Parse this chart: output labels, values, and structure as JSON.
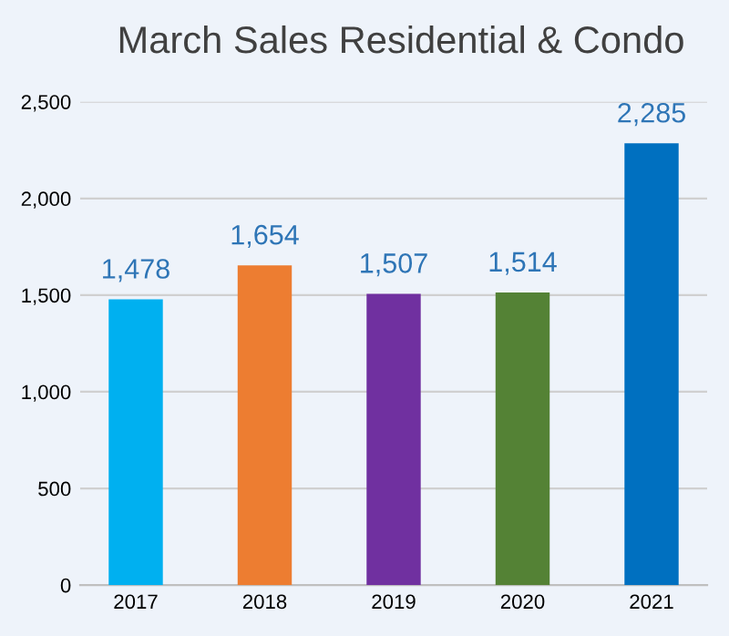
{
  "chart_data": {
    "type": "bar",
    "title": "March Sales Residential & Condo",
    "categories": [
      "2017",
      "2018",
      "2019",
      "2020",
      "2021"
    ],
    "values": [
      1478,
      1654,
      1507,
      1514,
      2285
    ],
    "colors": [
      "#00b0f0",
      "#ed7d31",
      "#7030a0",
      "#548235",
      "#0070c0"
    ],
    "value_labels": [
      "1,478",
      "1,654",
      "1,507",
      "1,514",
      "2,285"
    ],
    "ylim": [
      0,
      2500
    ],
    "yticks": [
      {
        "value": 0,
        "label": "0"
      },
      {
        "value": 500,
        "label": "500"
      },
      {
        "value": 1000,
        "label": "1,000"
      },
      {
        "value": 1500,
        "label": "1,500"
      },
      {
        "value": 2000,
        "label": "2,000"
      },
      {
        "value": 2500,
        "label": "2,500"
      }
    ],
    "grid": "y"
  }
}
